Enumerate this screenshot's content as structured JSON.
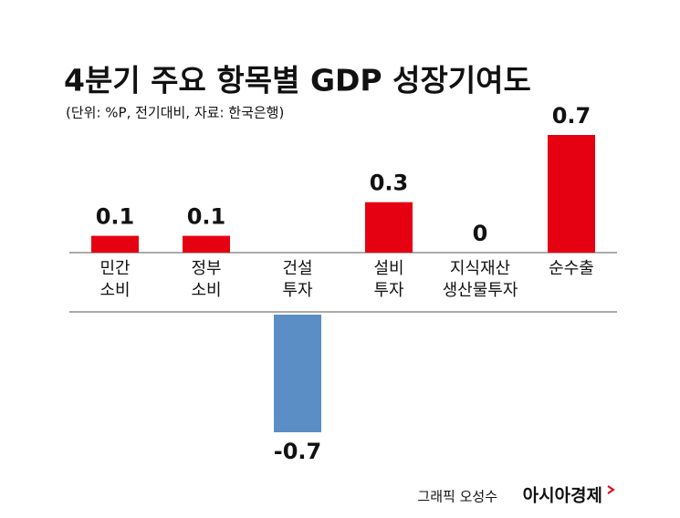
{
  "chart_data": {
    "type": "bar",
    "title": "4분기 주요 항목별 GDP 성장기여도",
    "subtitle": "(단위: %P, 전기대비, 자료: 한국은행)",
    "categories": [
      [
        "민간",
        "소비"
      ],
      [
        "정부",
        "소비"
      ],
      [
        "건설",
        "투자"
      ],
      [
        "설비",
        "투자"
      ],
      [
        "지식재산",
        "생산물투자"
      ],
      [
        "순수출"
      ]
    ],
    "values": [
      0.1,
      0.1,
      -0.7,
      0.3,
      0,
      0.7
    ],
    "colors": [
      "#e50012",
      "#e50012",
      "#5b8ec4",
      "#e50012",
      "#e50012",
      "#e50012"
    ],
    "credit": "그래픽 오성수",
    "brand": "아시아경제"
  }
}
